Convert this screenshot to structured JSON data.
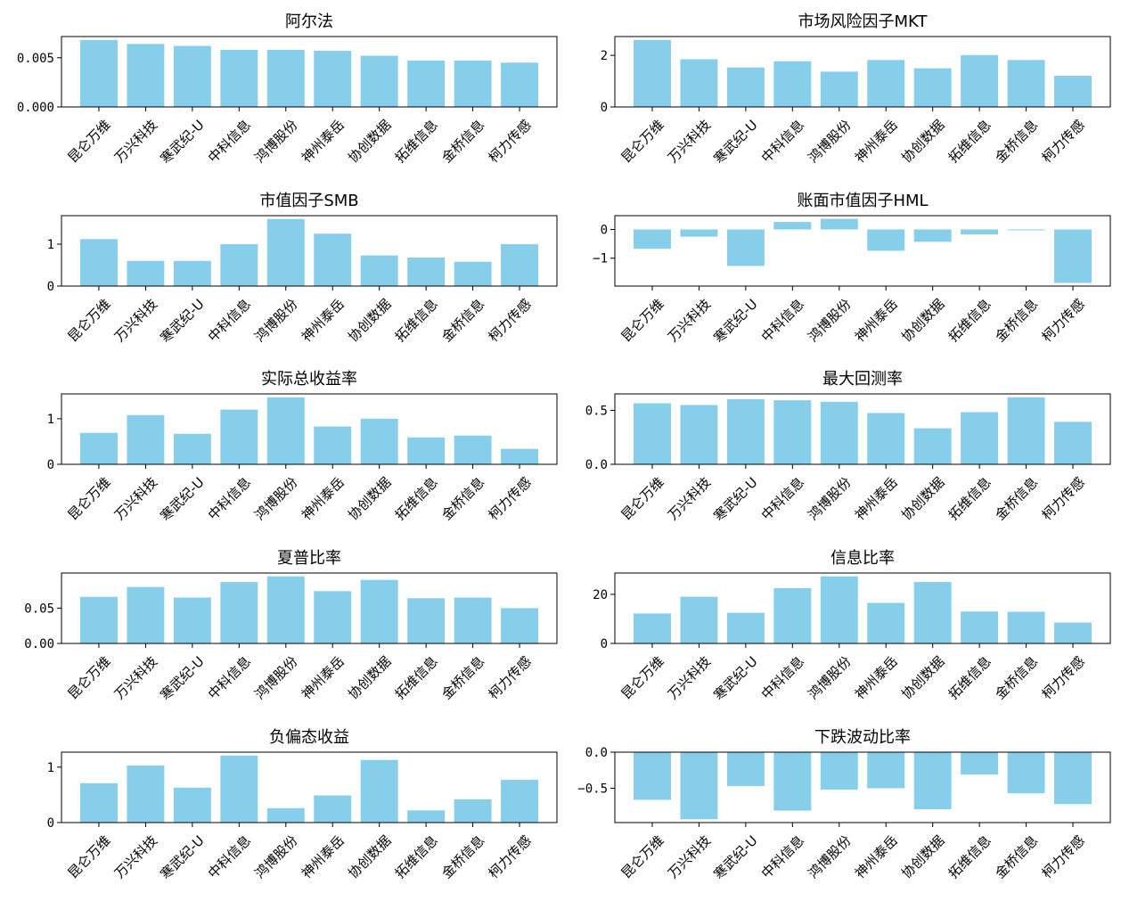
{
  "chart_data": [
    {
      "type": "bar",
      "title": "阿尔法",
      "categories": [
        "昆仑万维",
        "万兴科技",
        "寒武纪-U",
        "中科信息",
        "鸿博股份",
        "神州泰岳",
        "协创数据",
        "拓维信息",
        "金桥信息",
        "柯力传感"
      ],
      "values": [
        0.0068,
        0.0064,
        0.0062,
        0.0058,
        0.0058,
        0.0057,
        0.0052,
        0.0047,
        0.0047,
        0.0045
      ],
      "ylim": [
        0,
        0.00715
      ],
      "yticks": [
        0,
        0.005
      ],
      "ytick_labels": [
        "0.000",
        "0.005"
      ],
      "bar_color": "#87ceeb"
    },
    {
      "type": "bar",
      "title": "市场风险因子MKT",
      "categories": [
        "昆仑万维",
        "万兴科技",
        "寒武纪-U",
        "中科信息",
        "鸿博股份",
        "神州泰岳",
        "协创数据",
        "拓维信息",
        "金桥信息",
        "柯力传感"
      ],
      "values": [
        2.6,
        1.85,
        1.53,
        1.77,
        1.37,
        1.82,
        1.5,
        2.01,
        1.82,
        1.21
      ],
      "ylim": [
        0,
        2.73
      ],
      "yticks": [
        0,
        2
      ],
      "ytick_labels": [
        "0",
        "2"
      ],
      "bar_color": "#87ceeb"
    },
    {
      "type": "bar",
      "title": "市值因子SMB",
      "categories": [
        "昆仑万维",
        "万兴科技",
        "寒武纪-U",
        "中科信息",
        "鸿博股份",
        "神州泰岳",
        "协创数据",
        "拓维信息",
        "金桥信息",
        "柯力传感"
      ],
      "values": [
        1.12,
        0.6,
        0.6,
        1.0,
        1.6,
        1.25,
        0.73,
        0.68,
        0.58,
        1.0
      ],
      "ylim": [
        0,
        1.68
      ],
      "yticks": [
        0,
        1
      ],
      "ytick_labels": [
        "0",
        "1"
      ],
      "bar_color": "#87ceeb"
    },
    {
      "type": "bar",
      "title": "账面市值因子HML",
      "categories": [
        "昆仑万维",
        "万兴科技",
        "寒武纪-U",
        "中科信息",
        "鸿博股份",
        "神州泰岳",
        "协创数据",
        "拓维信息",
        "金桥信息",
        "柯力传感"
      ],
      "values": [
        -0.67,
        -0.25,
        -1.27,
        0.26,
        0.37,
        -0.74,
        -0.43,
        -0.17,
        -0.03,
        -1.86
      ],
      "ylim": [
        -1.97,
        0.48
      ],
      "yticks": [
        -1,
        0
      ],
      "ytick_labels": [
        "−1",
        "0"
      ],
      "bar_color": "#87ceeb"
    },
    {
      "type": "bar",
      "title": "实际总收益率",
      "categories": [
        "昆仑万维",
        "万兴科技",
        "寒武纪-U",
        "中科信息",
        "鸿博股份",
        "神州泰岳",
        "协创数据",
        "拓维信息",
        "金桥信息",
        "柯力传感"
      ],
      "values": [
        0.69,
        1.08,
        0.67,
        1.2,
        1.47,
        0.83,
        1.0,
        0.59,
        0.63,
        0.34
      ],
      "ylim": [
        0,
        1.545
      ],
      "yticks": [
        0,
        1
      ],
      "ytick_labels": [
        "0",
        "1"
      ],
      "bar_color": "#87ceeb"
    },
    {
      "type": "bar",
      "title": "最大回测率",
      "categories": [
        "昆仑万维",
        "万兴科技",
        "寒武纪-U",
        "中科信息",
        "鸿博股份",
        "神州泰岳",
        "协创数据",
        "拓维信息",
        "金桥信息",
        "柯力传感"
      ],
      "values": [
        0.566,
        0.55,
        0.605,
        0.594,
        0.58,
        0.476,
        0.334,
        0.484,
        0.622,
        0.394
      ],
      "ylim": [
        0,
        0.653
      ],
      "yticks": [
        0,
        0.5
      ],
      "ytick_labels": [
        "0.0",
        "0.5"
      ],
      "bar_color": "#87ceeb"
    },
    {
      "type": "bar",
      "title": "夏普比率",
      "categories": [
        "昆仑万维",
        "万兴科技",
        "寒武纪-U",
        "中科信息",
        "鸿博股份",
        "神州泰岳",
        "协创数据",
        "拓维信息",
        "金桥信息",
        "柯力传感"
      ],
      "values": [
        0.066,
        0.08,
        0.065,
        0.087,
        0.095,
        0.074,
        0.09,
        0.064,
        0.065,
        0.05
      ],
      "ylim": [
        0,
        0.0997
      ],
      "yticks": [
        0,
        0.05
      ],
      "ytick_labels": [
        "0.00",
        "0.05"
      ],
      "bar_color": "#87ceeb"
    },
    {
      "type": "bar",
      "title": "信息比率",
      "categories": [
        "昆仑万维",
        "万兴科技",
        "寒武纪-U",
        "中科信息",
        "鸿博股份",
        "神州泰岳",
        "协创数据",
        "拓维信息",
        "金桥信息",
        "柯力传感"
      ],
      "values": [
        12.2,
        19.0,
        12.5,
        22.5,
        27.3,
        16.5,
        25.0,
        13.0,
        12.9,
        8.5
      ],
      "ylim": [
        0,
        28.66
      ],
      "yticks": [
        0,
        20
      ],
      "ytick_labels": [
        "0",
        "20"
      ],
      "bar_color": "#87ceeb"
    },
    {
      "type": "bar",
      "title": "负偏态收益",
      "categories": [
        "昆仑万维",
        "万兴科技",
        "寒武纪-U",
        "中科信息",
        "鸿博股份",
        "神州泰岳",
        "协创数据",
        "拓维信息",
        "金桥信息",
        "柯力传感"
      ],
      "values": [
        0.71,
        1.03,
        0.63,
        1.21,
        0.26,
        0.49,
        1.13,
        0.22,
        0.42,
        0.77
      ],
      "ylim": [
        0,
        1.27
      ],
      "yticks": [
        0,
        1
      ],
      "ytick_labels": [
        "0",
        "1"
      ],
      "bar_color": "#87ceeb"
    },
    {
      "type": "bar",
      "title": "下跌波动比率",
      "categories": [
        "昆仑万维",
        "万兴科技",
        "寒武纪-U",
        "中科信息",
        "鸿博股份",
        "神州泰岳",
        "协创数据",
        "拓维信息",
        "金桥信息",
        "柯力传感"
      ],
      "values": [
        -0.66,
        -0.93,
        -0.47,
        -0.81,
        -0.52,
        -0.5,
        -0.79,
        -0.31,
        -0.57,
        -0.72
      ],
      "ylim": [
        -0.976,
        0
      ],
      "yticks": [
        -0.5,
        0
      ],
      "ytick_labels": [
        "−0.5",
        "0.0"
      ],
      "bar_color": "#87ceeb"
    }
  ]
}
